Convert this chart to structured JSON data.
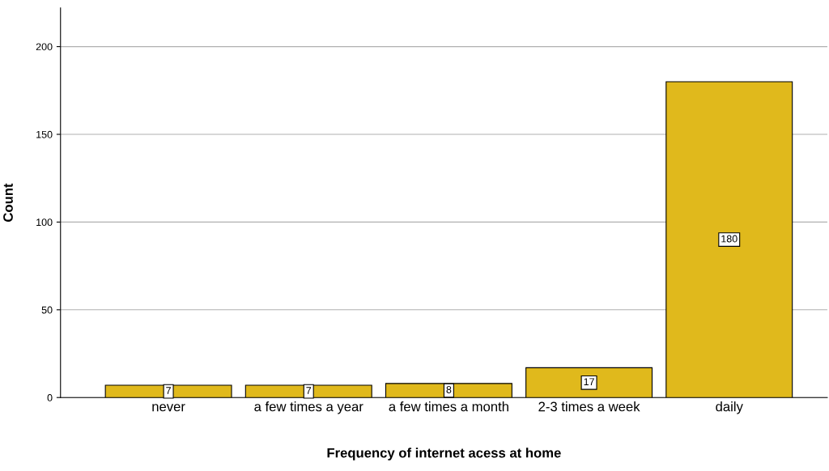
{
  "chart_data": {
    "type": "bar",
    "xlabel": "Frequency of internet acess at home",
    "ylabel": "Count",
    "categories": [
      "never",
      "a few times a year",
      "a few times a month",
      "2-3 times a week",
      "daily"
    ],
    "values": [
      7,
      7,
      8,
      17,
      180
    ],
    "color": "#e0b91c",
    "ylim": [
      0,
      222
    ],
    "yticks": [
      0,
      50,
      100,
      150,
      200
    ],
    "grid": "y",
    "data_labels": true
  }
}
